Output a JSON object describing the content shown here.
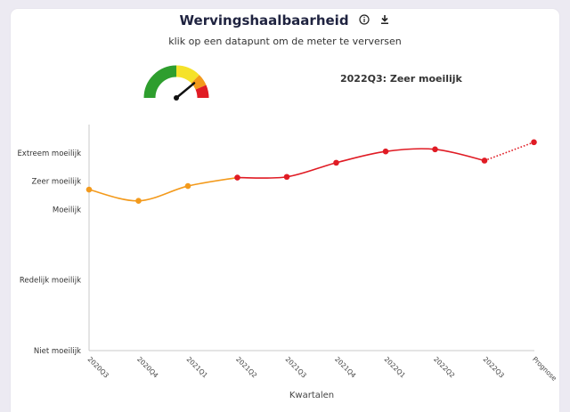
{
  "header": {
    "title": "Wervingshaalbaarheid",
    "subtitle": "klik op een datapunt om de meter te verversen",
    "info_icon": "info-icon",
    "download_icon": "download-icon"
  },
  "gauge": {
    "status_text": "2022Q3: Zeer moeilijk",
    "level": 0.78,
    "segment_colors": [
      "#2e9e2e",
      "#f5e22a",
      "#f39a1c",
      "#e01b24"
    ]
  },
  "chart_data": {
    "type": "line",
    "xlabel": "Kwartalen",
    "ylabel": "",
    "categories": [
      "2020Q3",
      "2020Q4",
      "2021Q1",
      "2021Q2",
      "2021Q3",
      "2021Q4",
      "2022Q1",
      "2022Q2",
      "2022Q3",
      "Prognose"
    ],
    "y_tick_labels": [
      {
        "label": "Niet moeilijk",
        "value": 0
      },
      {
        "label": "Redelijk moeilijk",
        "value": 1
      },
      {
        "label": "Moeilijk",
        "value": 2
      },
      {
        "label": "Zeer moeilijk",
        "value": 2.4
      },
      {
        "label": "Extreem moeilijk",
        "value": 2.8
      }
    ],
    "ylim": [
      0,
      3.2
    ],
    "values": [
      2.28,
      2.12,
      2.33,
      2.45,
      2.46,
      2.66,
      2.82,
      2.85,
      2.69,
      2.95
    ],
    "point_colors": [
      "#f39a1c",
      "#f39a1c",
      "#f39a1c",
      "#e01b24",
      "#e01b24",
      "#e01b24",
      "#e01b24",
      "#e01b24",
      "#e01b24",
      "#e01b24"
    ],
    "forecast_from_index": 8,
    "colors": {
      "orange": "#f39a1c",
      "red": "#e01b24"
    }
  }
}
